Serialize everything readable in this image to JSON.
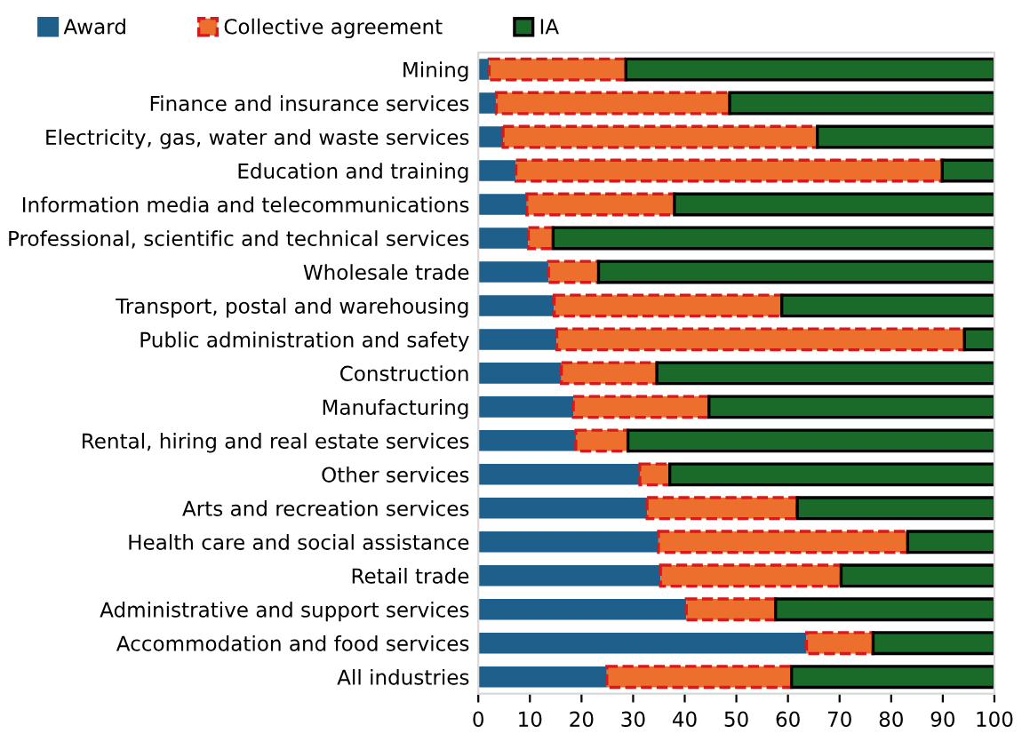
{
  "chart_data": {
    "type": "bar",
    "orientation": "horizontal",
    "stacked": true,
    "categories": [
      "Mining",
      "Finance and insurance services",
      "Electricity, gas, water and waste services",
      "Education and training",
      "Information media and telecommunications",
      "Professional, scientific and technical services",
      "Wholesale trade",
      "Transport, postal and warehousing",
      "Public administration and safety",
      "Construction",
      "Manufacturing",
      "Rental, hiring and real estate services",
      "Other services",
      "Arts and recreation services",
      "Health care and social assistance",
      "Retail trade",
      "Administrative and support services",
      "Accommodation and food services",
      "All industries"
    ],
    "series": [
      {
        "name": "Award",
        "color": "#1f5f8b",
        "values": [
          2.1,
          3.5,
          4.8,
          7.3,
          9.4,
          9.7,
          13.6,
          14.7,
          15.2,
          16.1,
          18.4,
          18.9,
          31.3,
          32.7,
          34.9,
          35.3,
          40.3,
          63.6,
          24.9
        ]
      },
      {
        "name": "Collective agreement",
        "color": "#ec6f2d",
        "line_style": "dashed",
        "values": [
          26.5,
          45.2,
          60.9,
          82.6,
          28.6,
          4.8,
          9.7,
          44.1,
          79.0,
          18.5,
          26.3,
          10.1,
          5.8,
          29.1,
          48.3,
          35.0,
          17.3,
          12.9,
          35.8
        ]
      },
      {
        "name": "IA",
        "color": "#1a6b2a",
        "line_style": "solid",
        "values": [
          71.4,
          51.3,
          34.3,
          10.1,
          62.0,
          85.5,
          76.7,
          41.2,
          5.8,
          65.4,
          55.3,
          71.0,
          62.9,
          38.2,
          16.8,
          29.7,
          42.4,
          23.5,
          39.3
        ]
      }
    ],
    "xlim": [
      0,
      100
    ],
    "xticks": [
      0,
      10,
      20,
      30,
      40,
      50,
      60,
      70,
      80,
      90,
      100
    ],
    "grid": false,
    "legend": "top left"
  }
}
